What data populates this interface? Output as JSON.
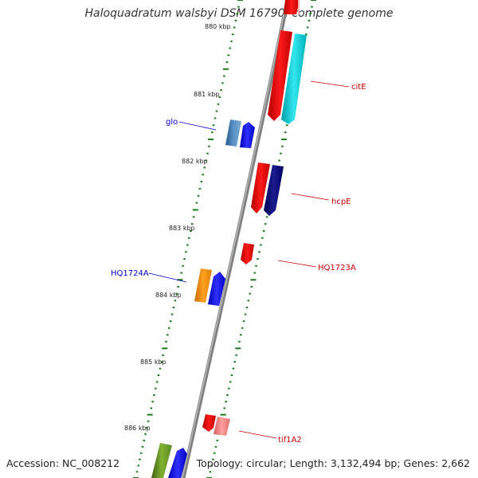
{
  "title": "Haloquadratum walsbyi DSM 16790, complete genome",
  "accession": "Accession: NC_008212",
  "topology": "Topology: circular; Length: 3,132,494 bp; Genes: 2,662",
  "colors": {
    "label_forward": "#0000cc",
    "label_reverse": "#cc0000",
    "tick": "#1a7a1a",
    "backbone": "#808080"
  },
  "scale_labels": [
    "880 kbp",
    "881 kbp",
    "882 kbp",
    "883 kbp",
    "884 kbp",
    "885 kbp",
    "886 kbp"
  ],
  "genes": [
    {
      "label": "citE",
      "strand": "reverse"
    },
    {
      "label": "glo",
      "strand": "forward"
    },
    {
      "label": "hcpE",
      "strand": "reverse"
    },
    {
      "label": "HQ1723A",
      "strand": "reverse"
    },
    {
      "label": "HQ1724A",
      "strand": "forward"
    },
    {
      "label": "tif1A2",
      "strand": "reverse"
    }
  ]
}
